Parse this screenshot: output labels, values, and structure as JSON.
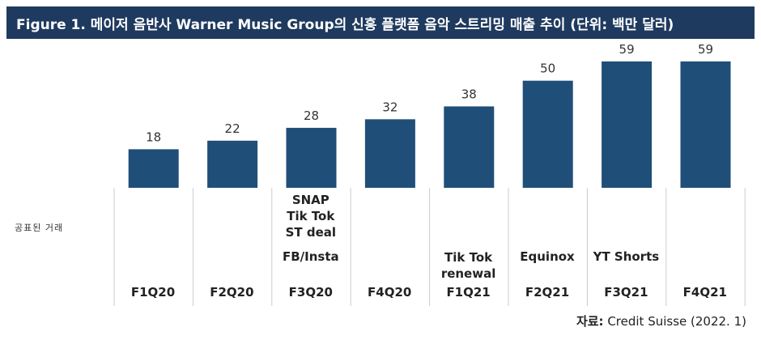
{
  "title": "Figure 1. 메이저 음반사 Warner Music Group의 신흥 플랫폼 음악 스트리밍 매출 추이 (단위: 백만 달러)",
  "row_label": "공표된 거래",
  "source": {
    "label": "자료:",
    "text": "Credit Suisse (2022. 1)"
  },
  "colors": {
    "bar": "#1f4e79",
    "title_bg": "#1f3a5f",
    "grid": "#cccccc"
  },
  "chart_data": {
    "type": "bar",
    "categories": [
      "F1Q20",
      "F2Q20",
      "F3Q20",
      "F4Q20",
      "F1Q21",
      "F2Q21",
      "F3Q21",
      "F4Q21"
    ],
    "values": [
      18,
      22,
      28,
      32,
      38,
      50,
      59,
      59
    ],
    "ylim": [
      0,
      65
    ],
    "grid": false,
    "annotations": [
      {
        "category": "F3Q20",
        "lines": [
          "SNAP",
          "Tik Tok",
          "ST deal"
        ]
      },
      {
        "category": "F3Q20",
        "lines": [
          "FB/Insta"
        ]
      },
      {
        "category": "F1Q21",
        "lines": [
          "Tik Tok",
          "renewal"
        ]
      },
      {
        "category": "F2Q21",
        "lines": [
          "Equinox"
        ]
      },
      {
        "category": "F3Q21",
        "lines": [
          "YT Shorts"
        ]
      }
    ]
  }
}
